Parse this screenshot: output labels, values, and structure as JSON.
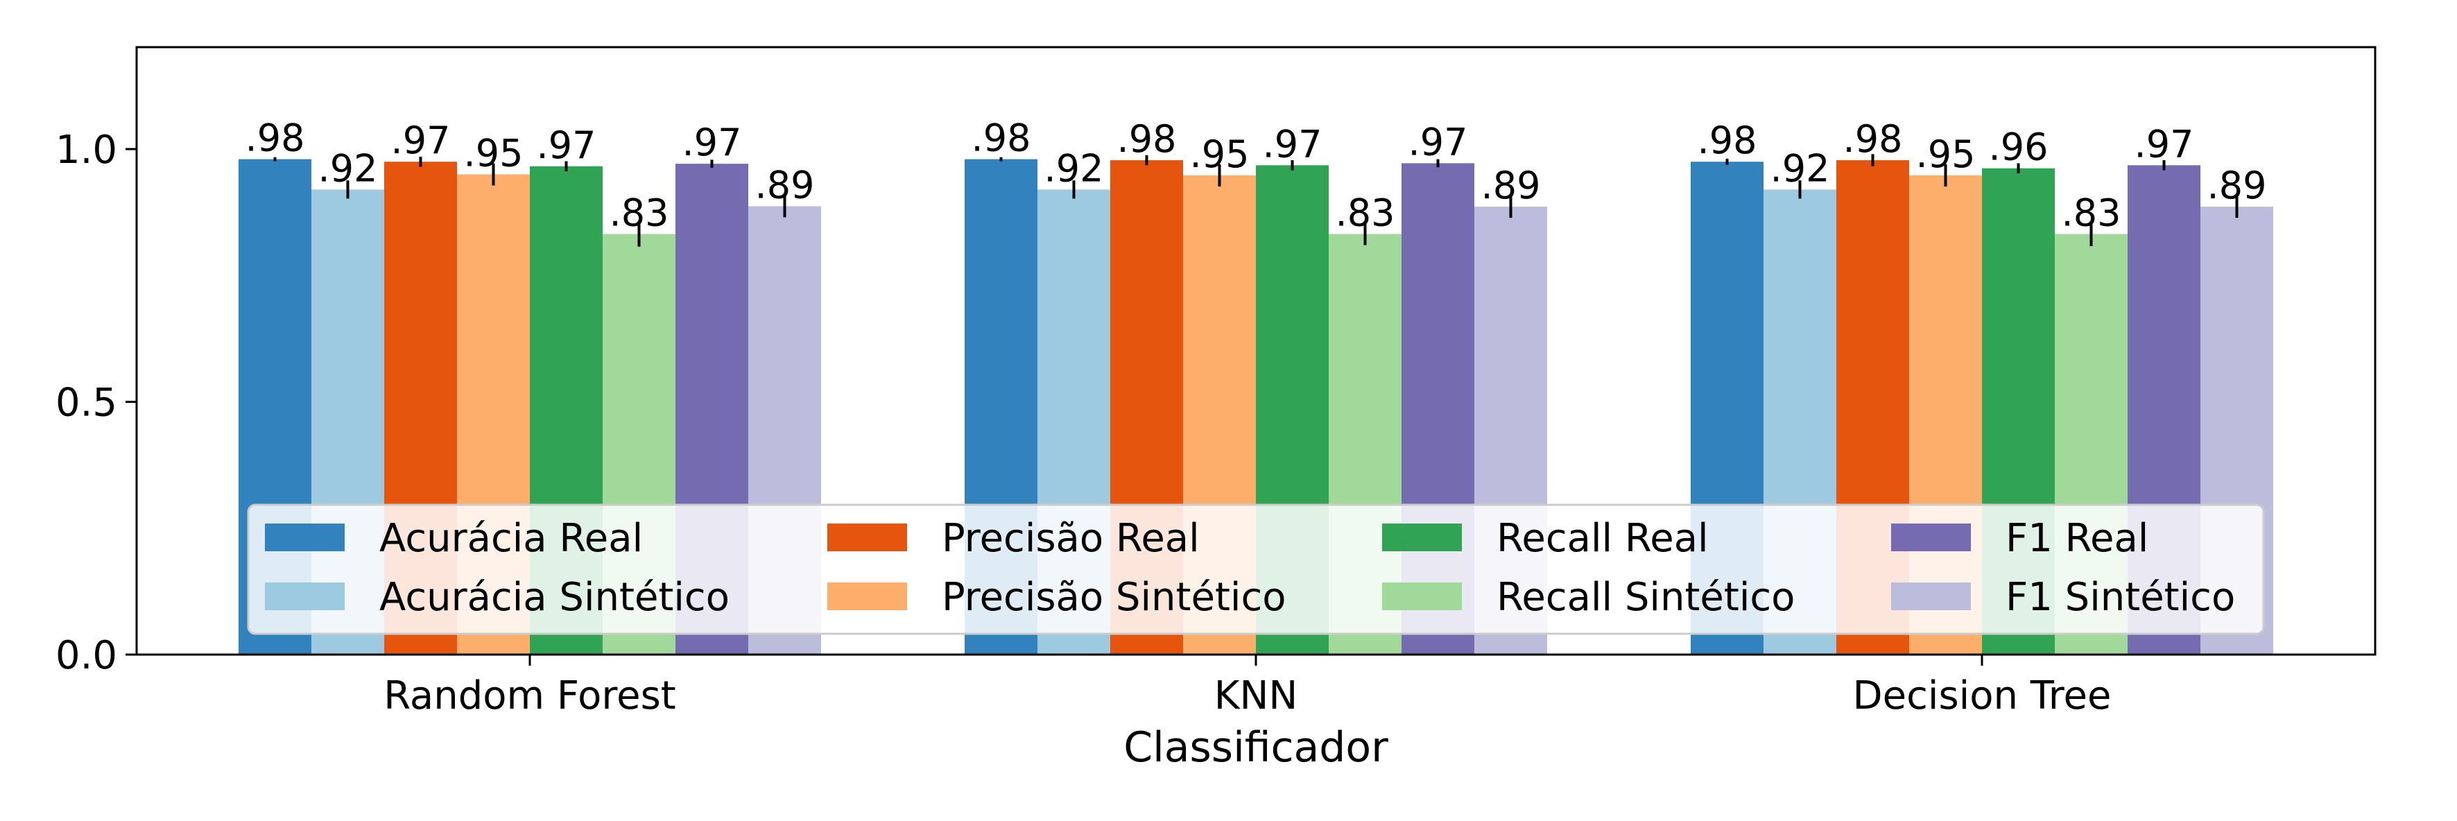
{
  "chart_data": {
    "type": "bar",
    "xlabel": "Classificador",
    "ylabel": "",
    "ylim": [
      0,
      1.2
    ],
    "yticks": [
      0.0,
      0.5,
      1.0
    ],
    "ytick_labels": [
      "0.0",
      "0.5",
      "1.0"
    ],
    "categories": [
      "Random Forest",
      "KNN",
      "Decision Tree"
    ],
    "grid": false,
    "legend_position": "lower center, 4 columns",
    "series": [
      {
        "name": "Acurácia Real",
        "color": "#3182bd",
        "values": [
          0.98,
          0.98,
          0.975
        ],
        "errors": [
          0.004,
          0.004,
          0.006
        ],
        "labels": [
          ".98",
          ".98",
          ".98"
        ]
      },
      {
        "name": "Acurácia Sintético",
        "color": "#9ecae1",
        "values": [
          0.92,
          0.92,
          0.92
        ],
        "errors": [
          0.018,
          0.018,
          0.018
        ],
        "labels": [
          ".92",
          ".92",
          ".92"
        ]
      },
      {
        "name": "Precisão Real",
        "color": "#e6550d",
        "values": [
          0.975,
          0.978,
          0.978
        ],
        "errors": [
          0.01,
          0.01,
          0.012
        ],
        "labels": [
          ".97",
          ".98",
          ".98"
        ]
      },
      {
        "name": "Precisão Sintético",
        "color": "#fdae6b",
        "values": [
          0.95,
          0.948,
          0.948
        ],
        "errors": [
          0.022,
          0.022,
          0.022
        ],
        "labels": [
          ".95",
          ".95",
          ".95"
        ]
      },
      {
        "name": "Recall Real",
        "color": "#31a354",
        "values": [
          0.966,
          0.968,
          0.962
        ],
        "errors": [
          0.01,
          0.01,
          0.01
        ],
        "labels": [
          ".97",
          ".97",
          ".96"
        ]
      },
      {
        "name": "Recall Sintético",
        "color": "#a1d99b",
        "values": [
          0.832,
          0.832,
          0.832
        ],
        "errors": [
          0.025,
          0.022,
          0.024
        ],
        "labels": [
          ".83",
          ".83",
          ".83"
        ]
      },
      {
        "name": "F1 Real",
        "color": "#756bb1",
        "values": [
          0.971,
          0.972,
          0.968
        ],
        "errors": [
          0.008,
          0.008,
          0.01
        ],
        "labels": [
          ".97",
          ".97",
          ".97"
        ]
      },
      {
        "name": "F1 Sintético",
        "color": "#bcbddc",
        "values": [
          0.887,
          0.886,
          0.886
        ],
        "errors": [
          0.022,
          0.022,
          0.022
        ],
        "labels": [
          ".89",
          ".89",
          ".89"
        ]
      }
    ]
  }
}
